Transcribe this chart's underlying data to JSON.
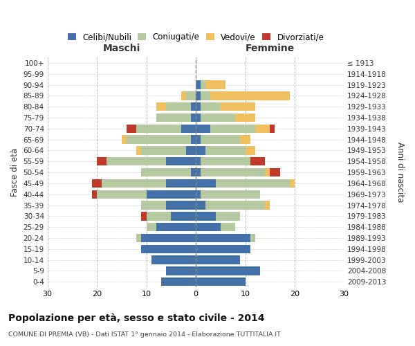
{
  "age_groups": [
    "0-4",
    "5-9",
    "10-14",
    "15-19",
    "20-24",
    "25-29",
    "30-34",
    "35-39",
    "40-44",
    "45-49",
    "50-54",
    "55-59",
    "60-64",
    "65-69",
    "70-74",
    "75-79",
    "80-84",
    "85-89",
    "90-94",
    "95-99",
    "100+"
  ],
  "year_labels": [
    "2009-2013",
    "2004-2008",
    "1999-2003",
    "1994-1998",
    "1989-1993",
    "1984-1988",
    "1979-1983",
    "1974-1978",
    "1969-1973",
    "1964-1968",
    "1959-1963",
    "1954-1958",
    "1949-1953",
    "1944-1948",
    "1939-1943",
    "1934-1938",
    "1929-1933",
    "1924-1928",
    "1919-1923",
    "1914-1918",
    "≤ 1913"
  ],
  "maschi": {
    "celibi": [
      7,
      6,
      9,
      11,
      11,
      8,
      5,
      6,
      10,
      6,
      1,
      6,
      2,
      1,
      3,
      1,
      1,
      0,
      0,
      0,
      0
    ],
    "coniugati": [
      0,
      0,
      0,
      0,
      1,
      2,
      5,
      5,
      10,
      13,
      10,
      12,
      9,
      13,
      9,
      7,
      5,
      2,
      0,
      0,
      0
    ],
    "vedovi": [
      0,
      0,
      0,
      0,
      0,
      0,
      0,
      0,
      0,
      0,
      0,
      0,
      1,
      1,
      0,
      0,
      2,
      1,
      0,
      0,
      0
    ],
    "divorziati": [
      0,
      0,
      0,
      0,
      0,
      0,
      1,
      0,
      1,
      2,
      0,
      2,
      0,
      0,
      2,
      0,
      0,
      0,
      0,
      0,
      0
    ]
  },
  "femmine": {
    "nubili": [
      10,
      13,
      9,
      11,
      11,
      5,
      4,
      2,
      1,
      4,
      1,
      1,
      2,
      1,
      3,
      1,
      1,
      1,
      1,
      0,
      0
    ],
    "coniugate": [
      0,
      0,
      0,
      0,
      1,
      3,
      5,
      12,
      12,
      15,
      13,
      10,
      8,
      8,
      9,
      7,
      4,
      2,
      1,
      0,
      0
    ],
    "vedove": [
      0,
      0,
      0,
      0,
      0,
      0,
      0,
      1,
      0,
      1,
      1,
      0,
      2,
      2,
      3,
      4,
      7,
      16,
      4,
      0,
      0
    ],
    "divorziate": [
      0,
      0,
      0,
      0,
      0,
      0,
      0,
      0,
      0,
      0,
      2,
      3,
      0,
      0,
      1,
      0,
      0,
      0,
      0,
      0,
      0
    ]
  },
  "colors": {
    "celibi_nubili": "#4472a8",
    "coniugati": "#b5c9a0",
    "vedovi": "#f0c060",
    "divorziati": "#c0392b"
  },
  "xlim": 30,
  "title": "Popolazione per età, sesso e stato civile - 2014",
  "subtitle": "COMUNE DI PREMIA (VB) - Dati ISTAT 1° gennaio 2014 - Elaborazione TUTTITALIA.IT",
  "ylabel_left": "Fasce di età",
  "ylabel_right": "Anni di nascita",
  "xlabel_maschi": "Maschi",
  "xlabel_femmine": "Femmine",
  "legend_labels": [
    "Celibi/Nubili",
    "Coniugati/e",
    "Vedovi/e",
    "Divorziati/e"
  ]
}
